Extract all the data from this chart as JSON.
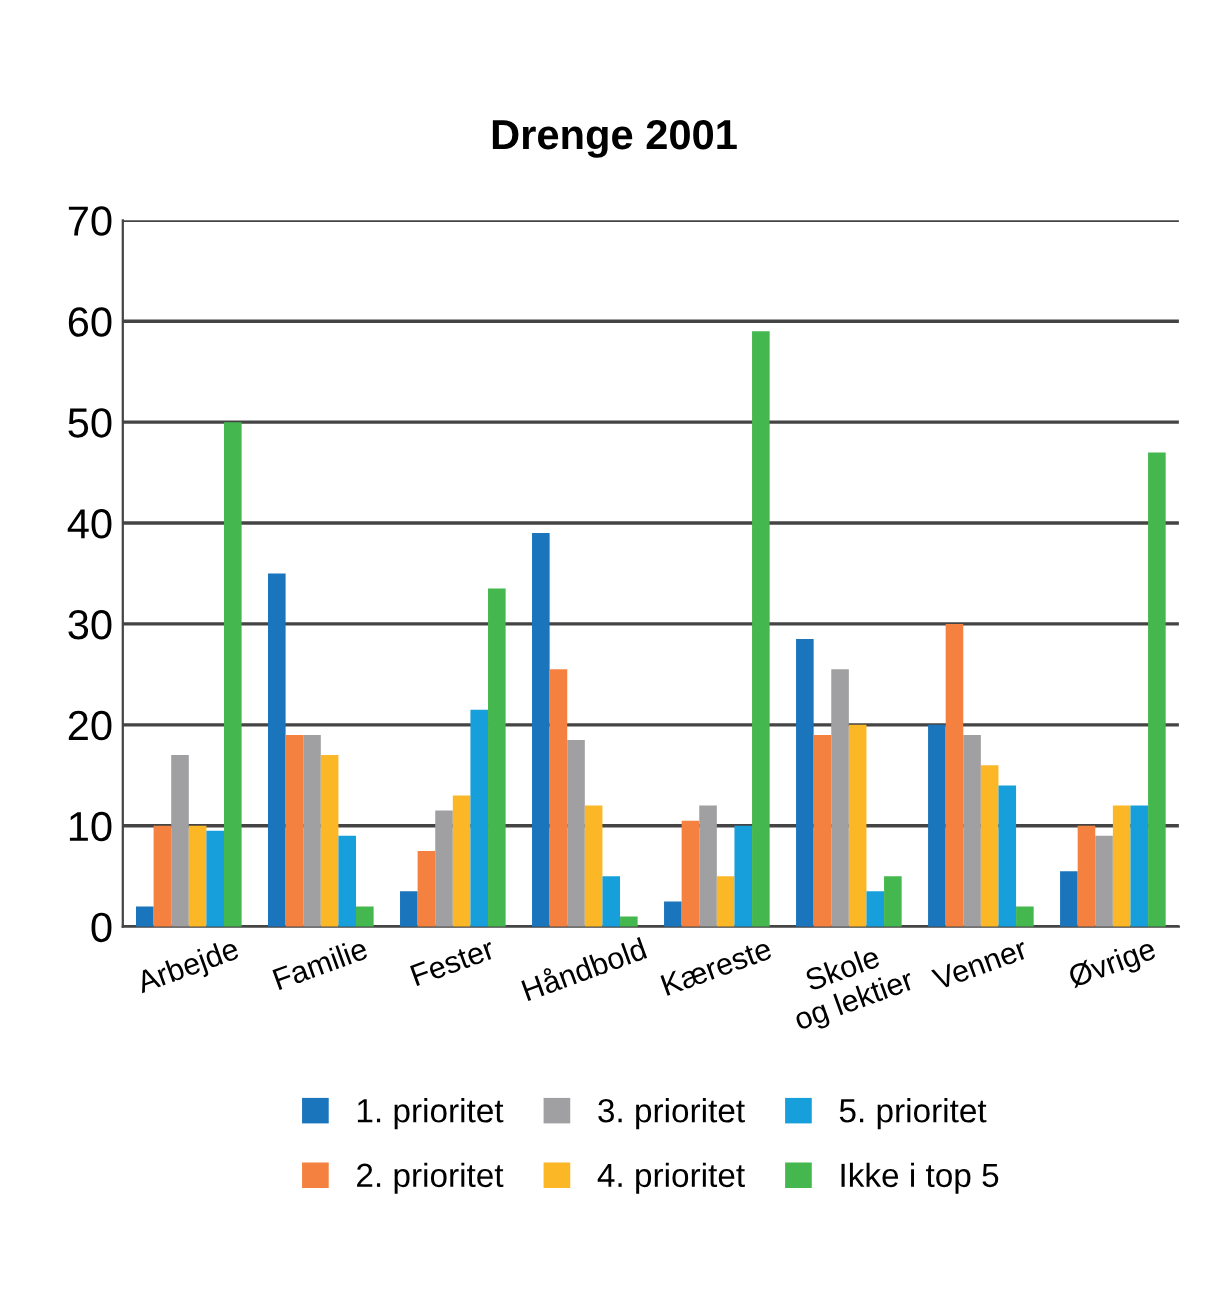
{
  "chart_data": {
    "type": "bar",
    "title": "Drenge 2001",
    "categories": [
      "Arbejde",
      "Familie",
      "Fester",
      "Håndbold",
      "Kæreste",
      "Skole\nog lektier",
      "Venner",
      "Øvrige"
    ],
    "series": [
      {
        "name": "1. prioritet",
        "color": "#1b75bc",
        "values": [
          2,
          35,
          3.5,
          39,
          2.5,
          28.5,
          20,
          5.5
        ]
      },
      {
        "name": "2. prioritet",
        "color": "#f58140",
        "values": [
          10,
          19,
          7.5,
          25.5,
          10.5,
          19,
          30,
          10
        ]
      },
      {
        "name": "3. prioritet",
        "color": "#a0a0a2",
        "values": [
          17,
          19,
          11.5,
          18.5,
          12,
          25.5,
          19,
          9
        ]
      },
      {
        "name": "4. prioritet",
        "color": "#fbb726",
        "values": [
          10,
          17,
          13,
          12,
          5,
          20,
          16,
          12
        ]
      },
      {
        "name": "5. prioritet",
        "color": "#179fdb",
        "values": [
          9.5,
          9,
          21.5,
          5,
          10,
          3.5,
          14,
          12
        ]
      },
      {
        "name": "Ikke i top 5",
        "color": "#45b74f",
        "values": [
          50,
          2,
          33.5,
          1,
          59,
          5,
          2,
          47
        ]
      }
    ],
    "ylim": [
      0,
      70
    ],
    "yticks": [
      0,
      10,
      20,
      30,
      40,
      50,
      60,
      70
    ],
    "grid": "y",
    "legend": "bottom"
  }
}
